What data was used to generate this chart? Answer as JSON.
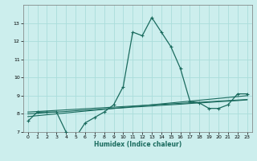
{
  "title": "",
  "xlabel": "Humidex (Indice chaleur)",
  "bg_color": "#cceeed",
  "grid_color": "#aadddb",
  "line_color": "#1a6b5e",
  "x_values": [
    0,
    1,
    2,
    3,
    4,
    5,
    6,
    7,
    8,
    9,
    10,
    11,
    12,
    13,
    14,
    15,
    16,
    17,
    18,
    19,
    20,
    21,
    22,
    23
  ],
  "main_y": [
    7.6,
    8.1,
    8.1,
    8.1,
    7.0,
    6.7,
    7.5,
    7.8,
    8.1,
    8.5,
    9.5,
    12.5,
    12.3,
    13.3,
    12.5,
    11.7,
    10.5,
    8.7,
    8.6,
    8.3,
    8.3,
    8.5,
    9.1,
    9.1
  ],
  "reg1_y": [
    7.85,
    7.9,
    7.95,
    8.0,
    8.05,
    8.1,
    8.15,
    8.2,
    8.25,
    8.3,
    8.35,
    8.4,
    8.45,
    8.5,
    8.55,
    8.6,
    8.65,
    8.7,
    8.75,
    8.8,
    8.85,
    8.9,
    8.95,
    9.0
  ],
  "reg2_y": [
    8.0,
    8.03,
    8.07,
    8.1,
    8.13,
    8.17,
    8.2,
    8.23,
    8.27,
    8.3,
    8.33,
    8.37,
    8.4,
    8.43,
    8.47,
    8.5,
    8.53,
    8.57,
    8.6,
    8.63,
    8.67,
    8.7,
    8.73,
    8.77
  ],
  "reg3_y": [
    8.1,
    8.13,
    8.16,
    8.19,
    8.22,
    8.25,
    8.28,
    8.31,
    8.34,
    8.37,
    8.4,
    8.43,
    8.46,
    8.49,
    8.52,
    8.55,
    8.58,
    8.61,
    8.64,
    8.67,
    8.7,
    8.73,
    8.76,
    8.79
  ],
  "ylim": [
    7,
    14
  ],
  "yticks": [
    7,
    8,
    9,
    10,
    11,
    12,
    13
  ],
  "xticks": [
    0,
    1,
    2,
    3,
    4,
    5,
    6,
    7,
    8,
    9,
    10,
    11,
    12,
    13,
    14,
    15,
    16,
    17,
    18,
    19,
    20,
    21,
    22,
    23
  ]
}
